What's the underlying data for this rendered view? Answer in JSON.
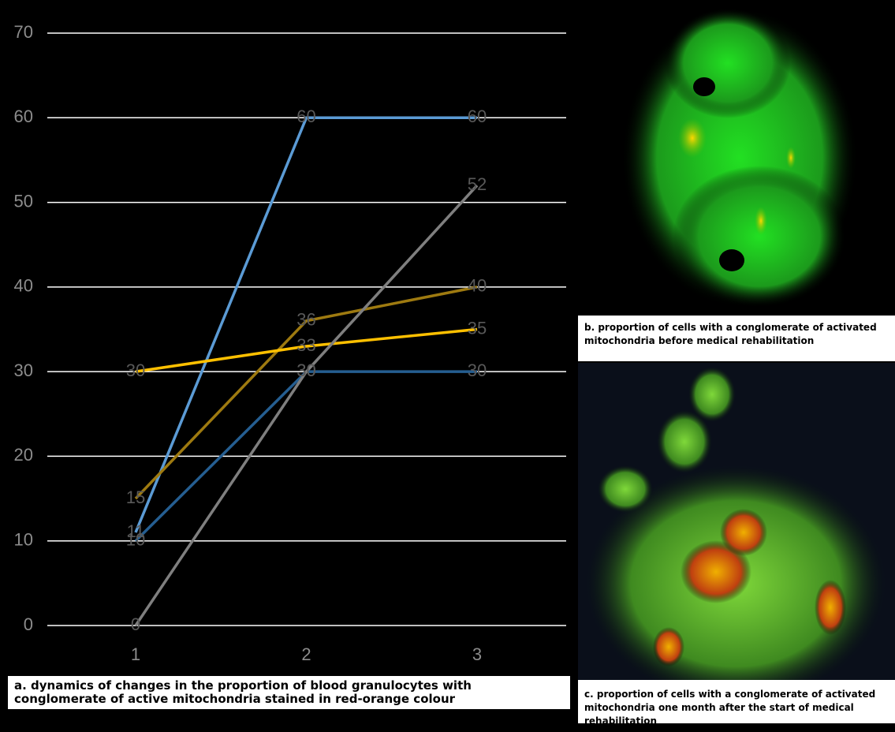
{
  "chart_data": {
    "type": "line",
    "categories": [
      "1",
      "2",
      "3"
    ],
    "series": [
      {
        "color": "#5b9bd5",
        "values": [
          11,
          60,
          60
        ]
      },
      {
        "color": "#255e91",
        "values": [
          10,
          30,
          30
        ]
      },
      {
        "color": "#9e7a10",
        "values": [
          15,
          36,
          40
        ]
      },
      {
        "color": "#ffc000",
        "values": [
          30,
          33,
          35
        ]
      },
      {
        "color": "#7f7f7f",
        "values": [
          0,
          30,
          52
        ]
      }
    ],
    "ylim": [
      0,
      70
    ],
    "yticks": [
      0,
      10,
      20,
      30,
      40,
      50,
      60,
      70
    ],
    "grid": true,
    "caption": "a. dynamics of changes in the proportion of blood granulocytes with conglomerate of active mitochondria stained in red-orange colour"
  },
  "panels": [
    {
      "caption": "b. proportion of cells with a conglomerate of activated mitochondria before medical rehabilitation"
    },
    {
      "caption": "c. proportion of cells with a conglomerate of activated mitochondria one month after the start of medical rehabilitation"
    }
  ]
}
